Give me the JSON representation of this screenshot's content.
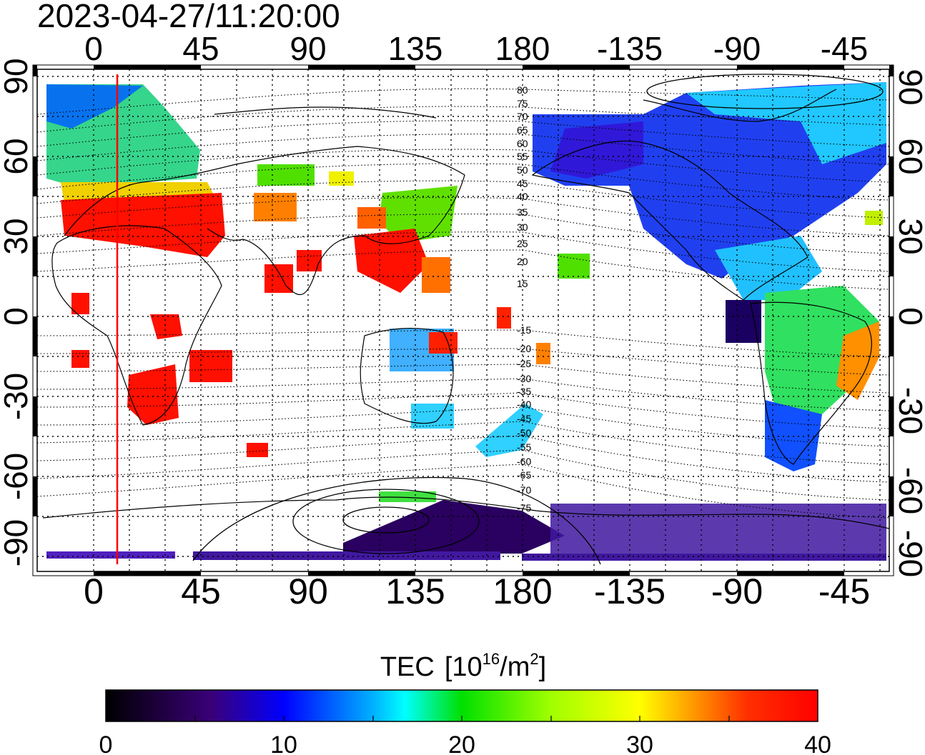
{
  "timestamp": "2023-04-27/11:20:00",
  "map": {
    "x_tick_labels": [
      "0",
      "45",
      "90",
      "135",
      "180",
      "-135",
      "-90",
      "-45"
    ],
    "y_tick_labels": [
      "90",
      "60",
      "30",
      "0",
      "-30",
      "-60",
      "-90"
    ],
    "contour_labels": [
      "80",
      "75",
      "70",
      "65",
      "60",
      "55",
      "50",
      "45",
      "40",
      "35",
      "30",
      "25",
      "20",
      "15",
      "-15",
      "-20",
      "-25",
      "-30",
      "-35",
      "-40",
      "-45",
      "-50",
      "-55",
      "-60",
      "-65",
      "-70",
      "-75"
    ],
    "marker_color": "#ff0000"
  },
  "colorbar": {
    "title": "TEC",
    "unit_prefix": "[10",
    "unit_exp": "16",
    "unit_mid": "/m",
    "unit_exp2": "2",
    "unit_suffix": "]",
    "tick_labels": [
      "0",
      "10",
      "20",
      "30",
      "40"
    ],
    "range": [
      0,
      40
    ]
  }
}
